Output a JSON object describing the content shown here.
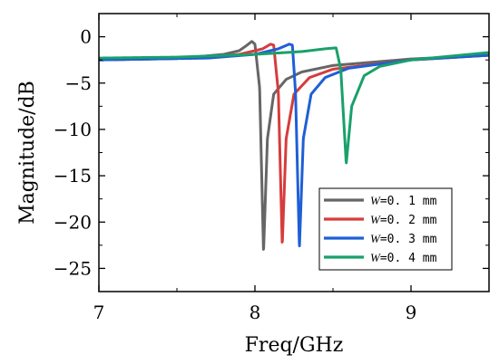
{
  "chart_data": {
    "type": "line",
    "title": "",
    "xlabel": "Freq/GHz",
    "ylabel": "Magnitude/dB",
    "xlim": [
      7,
      9.5
    ],
    "ylim": [
      -27.5,
      2.5
    ],
    "xticks": [
      7,
      8,
      9
    ],
    "xtick_labels": [
      "7",
      "8",
      "9"
    ],
    "yticks": [
      0,
      -5,
      -10,
      -15,
      -20,
      -25
    ],
    "ytick_labels": [
      "0",
      "−5",
      "−10",
      "−15",
      "−20",
      "−25"
    ],
    "grid": false,
    "legend_position": "lower-right",
    "series": [
      {
        "name": "W=0.1 mm",
        "legend_var": "W",
        "legend_value": "=0. 1  mm",
        "color": "#666666",
        "resonance": {
          "f0": 8.055,
          "gamma": 0.006,
          "A": 0.11
        },
        "points": [
          [
            7.0,
            -2.5
          ],
          [
            7.5,
            -2.35
          ],
          [
            7.8,
            -1.9
          ],
          [
            7.9,
            -1.5
          ],
          [
            7.95,
            -0.9
          ],
          [
            7.98,
            -0.5
          ],
          [
            8.0,
            -0.8
          ],
          [
            8.03,
            -5.5
          ],
          [
            8.055,
            -23.3
          ],
          [
            8.08,
            -11.0
          ],
          [
            8.12,
            -6.2
          ],
          [
            8.2,
            -4.6
          ],
          [
            8.3,
            -3.8
          ],
          [
            8.5,
            -3.1
          ],
          [
            9.0,
            -2.4
          ],
          [
            9.5,
            -2.0
          ]
        ]
      },
      {
        "name": "W=0.2 mm",
        "legend_var": "W",
        "legend_value": "=0. 2  mm",
        "color": "#d63c3c",
        "resonance": {
          "f0": 8.175,
          "gamma": 0.006,
          "A": 0.11
        },
        "points": [
          [
            7.0,
            -2.5
          ],
          [
            7.6,
            -2.3
          ],
          [
            7.9,
            -1.9
          ],
          [
            8.05,
            -1.3
          ],
          [
            8.1,
            -0.8
          ],
          [
            8.12,
            -0.9
          ],
          [
            8.15,
            -6.0
          ],
          [
            8.175,
            -22.5
          ],
          [
            8.2,
            -11.0
          ],
          [
            8.25,
            -6.2
          ],
          [
            8.35,
            -4.4
          ],
          [
            8.5,
            -3.5
          ],
          [
            9.0,
            -2.5
          ],
          [
            9.5,
            -2.0
          ]
        ]
      },
      {
        "name": "W=0.3 mm",
        "legend_var": "W",
        "legend_value": "=0. 3  mm",
        "color": "#1f5fd6",
        "resonance": {
          "f0": 8.285,
          "gamma": 0.006,
          "A": 0.11
        },
        "points": [
          [
            7.0,
            -2.5
          ],
          [
            7.7,
            -2.3
          ],
          [
            8.0,
            -1.9
          ],
          [
            8.15,
            -1.3
          ],
          [
            8.22,
            -0.8
          ],
          [
            8.24,
            -0.9
          ],
          [
            8.26,
            -6.0
          ],
          [
            8.285,
            -22.8
          ],
          [
            8.31,
            -11.0
          ],
          [
            8.36,
            -6.2
          ],
          [
            8.45,
            -4.4
          ],
          [
            8.6,
            -3.4
          ],
          [
            9.0,
            -2.5
          ],
          [
            9.5,
            -2.0
          ]
        ]
      },
      {
        "name": "W=0.4 mm",
        "legend_var": "W",
        "legend_value": "=0. 4  mm",
        "color": "#19a06b",
        "resonance": {
          "f0": 8.585,
          "gamma": 0.009,
          "A": 0.11
        },
        "points": [
          [
            7.0,
            -2.3
          ],
          [
            7.5,
            -2.2
          ],
          [
            8.0,
            -1.9
          ],
          [
            8.3,
            -1.6
          ],
          [
            8.45,
            -1.3
          ],
          [
            8.52,
            -1.2
          ],
          [
            8.55,
            -3.5
          ],
          [
            8.585,
            -13.7
          ],
          [
            8.62,
            -7.5
          ],
          [
            8.7,
            -4.2
          ],
          [
            8.8,
            -3.2
          ],
          [
            9.0,
            -2.5
          ],
          [
            9.5,
            -1.7
          ]
        ]
      }
    ]
  }
}
